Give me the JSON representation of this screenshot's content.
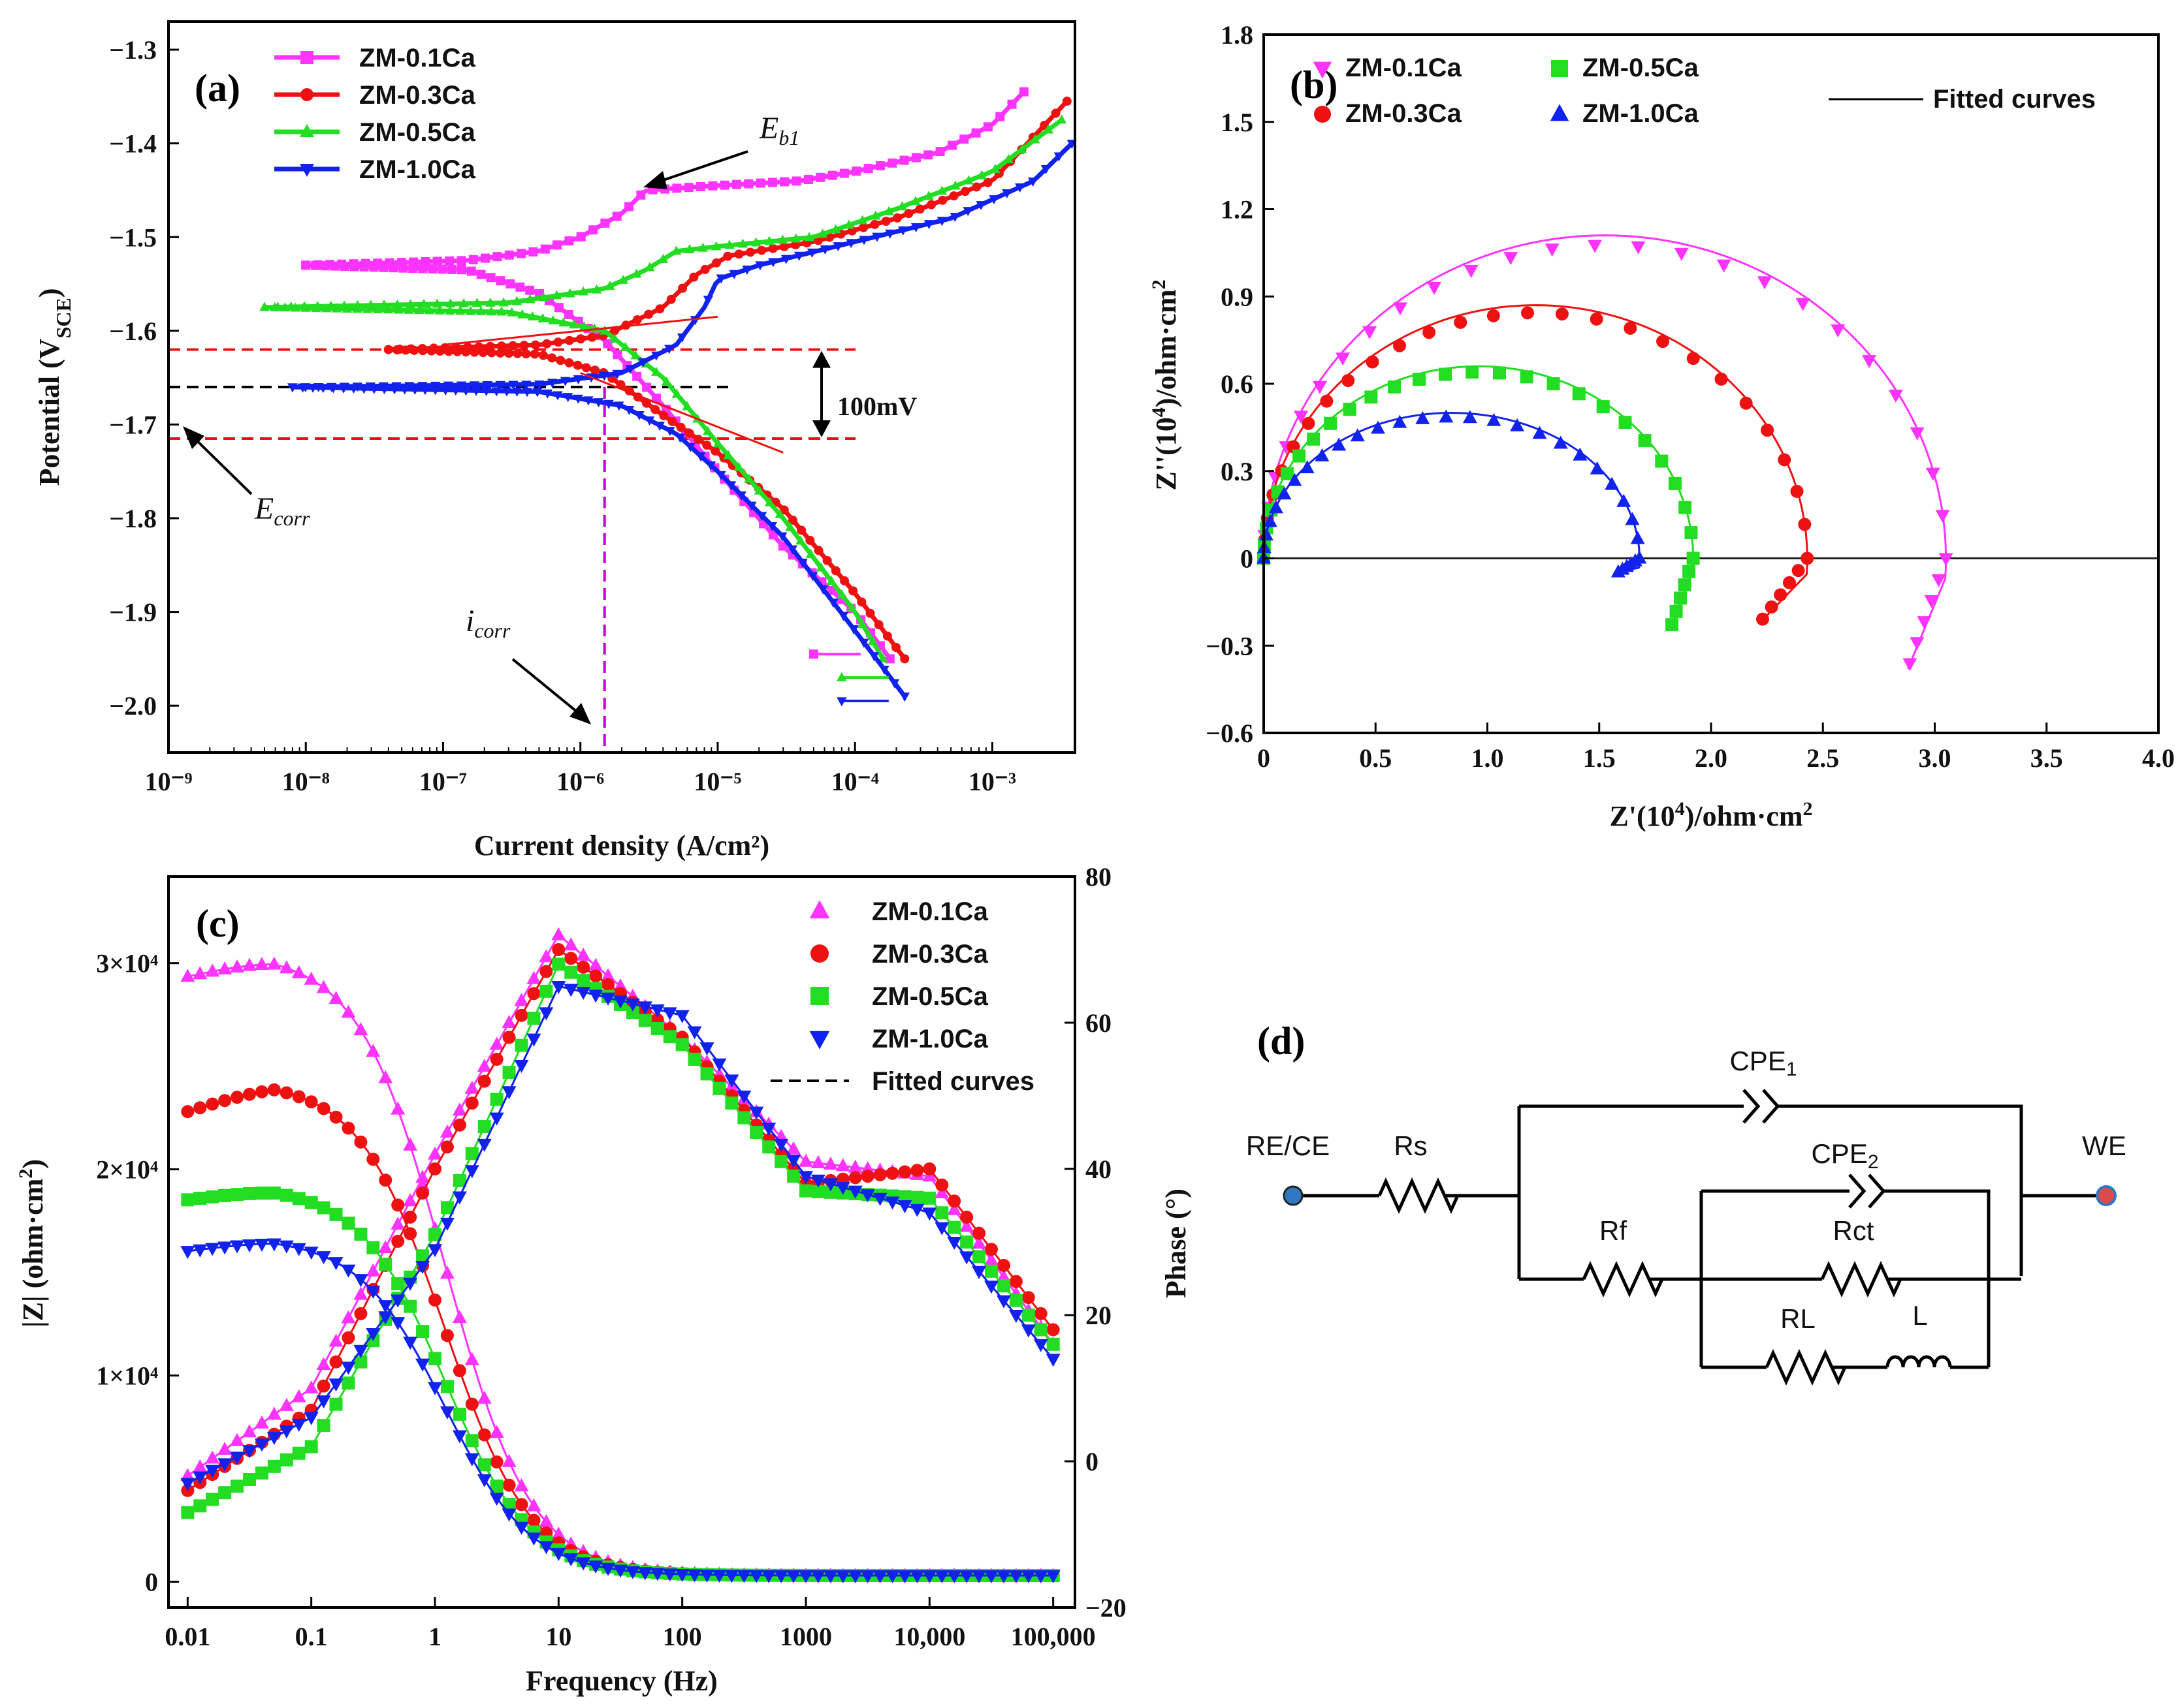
{
  "colors": {
    "ZM-0.1Ca": "#ff33ff",
    "ZM-0.3Ca": "#ee1111",
    "ZM-0.5Ca": "#22dd22",
    "ZM-1.0Ca": "#1122ee",
    "refline_red": "#ee1111",
    "refline_black": "#000000",
    "refline_magenta": "#cc00cc"
  },
  "chart_data": [
    {
      "panel": "(a)",
      "type": "line",
      "x_scale": "log",
      "xlabel": "Current density (A/cm²)",
      "ylabel": "Potential (VSCE)",
      "xlim": [
        1e-09,
        0.004
      ],
      "ylim": [
        -2.05,
        -1.27
      ],
      "x_ticks": [
        "10⁻⁹",
        "10⁻⁸",
        "10⁻⁷",
        "10⁻⁶",
        "10⁻⁵",
        "10⁻⁴",
        "10⁻³"
      ],
      "y_ticks": [
        "−1.3",
        "−1.4",
        "−1.5",
        "−1.6",
        "−1.7",
        "−1.8",
        "−1.9",
        "−2.0"
      ],
      "legend": [
        "ZM-0.1Ca",
        "ZM-0.3Ca",
        "ZM-0.5Ca",
        "ZM-1.0Ca"
      ],
      "annotations": {
        "eb1_main": "E",
        "eb1_sub": "b1",
        "ecorr_main": "E",
        "ecorr_sub": "corr",
        "icorr_main": "i",
        "icorr_sub": "corr",
        "delta": "100mV"
      },
      "series": [
        {
          "name": "ZM-0.1Ca",
          "Ecorr": -1.53,
          "cathodic": [
            [
              1e-08,
              -1.53
            ],
            [
              1.5e-07,
              -1.535
            ],
            [
              5e-07,
              -1.56
            ],
            [
              1.5e-06,
              -1.61
            ],
            [
              4e-06,
              -1.68
            ],
            [
              1e-05,
              -1.75
            ],
            [
              3e-05,
              -1.83
            ],
            [
              0.0001,
              -1.9
            ],
            [
              0.00018,
              -1.95
            ]
          ],
          "anodic": [
            [
              1e-08,
              -1.53
            ],
            [
              1.5e-07,
              -1.525
            ],
            [
              5e-07,
              -1.515
            ],
            [
              1e-06,
              -1.5
            ],
            [
              2e-06,
              -1.475
            ],
            [
              3e-06,
              -1.45
            ],
            [
              1e-05,
              -1.445
            ],
            [
              4e-05,
              -1.44
            ],
            [
              0.0001,
              -1.43
            ],
            [
              0.0004,
              -1.41
            ],
            [
              0.001,
              -1.38
            ],
            [
              0.0017,
              -1.345
            ]
          ]
        },
        {
          "name": "ZM-0.3Ca",
          "Ecorr": -1.62,
          "cathodic": [
            [
              4e-08,
              -1.62
            ],
            [
              5e-07,
              -1.625
            ],
            [
              1.5e-06,
              -1.645
            ],
            [
              4e-06,
              -1.69
            ],
            [
              1e-05,
              -1.73
            ],
            [
              3e-05,
              -1.79
            ],
            [
              0.0001,
              -1.88
            ],
            [
              0.00023,
              -1.95
            ]
          ],
          "anodic": [
            [
              4e-08,
              -1.62
            ],
            [
              5e-07,
              -1.615
            ],
            [
              1.5e-06,
              -1.605
            ],
            [
              4e-06,
              -1.575
            ],
            [
              7e-06,
              -1.54
            ],
            [
              1.2e-05,
              -1.52
            ],
            [
              5e-05,
              -1.505
            ],
            [
              0.0002,
              -1.48
            ],
            [
              0.001,
              -1.44
            ],
            [
              0.0035,
              -1.355
            ]
          ]
        },
        {
          "name": "ZM-0.5Ca",
          "Ecorr": -1.575,
          "cathodic": [
            [
              5e-09,
              -1.575
            ],
            [
              3e-07,
              -1.58
            ],
            [
              1.5e-06,
              -1.6
            ],
            [
              4e-06,
              -1.65
            ],
            [
              1e-05,
              -1.72
            ],
            [
              3e-05,
              -1.8
            ],
            [
              0.0001,
              -1.9
            ],
            [
              0.00016,
              -1.95
            ]
          ],
          "anodic": [
            [
              5e-09,
              -1.575
            ],
            [
              3e-07,
              -1.57
            ],
            [
              1.5e-06,
              -1.555
            ],
            [
              3e-06,
              -1.535
            ],
            [
              5e-06,
              -1.515
            ],
            [
              1e-05,
              -1.51
            ],
            [
              5e-05,
              -1.5
            ],
            [
              0.0002,
              -1.47
            ],
            [
              0.001,
              -1.43
            ],
            [
              0.0032,
              -1.375
            ]
          ]
        },
        {
          "name": "ZM-1.0Ca",
          "Ecorr": -1.66,
          "cathodic": [
            [
              8e-09,
              -1.66
            ],
            [
              5e-07,
              -1.665
            ],
            [
              2e-06,
              -1.68
            ],
            [
              5e-06,
              -1.71
            ],
            [
              1e-05,
              -1.75
            ],
            [
              3e-05,
              -1.82
            ],
            [
              0.0001,
              -1.92
            ],
            [
              0.00023,
              -1.99
            ]
          ],
          "anodic": [
            [
              8e-09,
              -1.66
            ],
            [
              5e-07,
              -1.657
            ],
            [
              2e-06,
              -1.645
            ],
            [
              5e-06,
              -1.615
            ],
            [
              8e-06,
              -1.575
            ],
            [
              1e-05,
              -1.545
            ],
            [
              2e-05,
              -1.53
            ],
            [
              0.0001,
              -1.505
            ],
            [
              0.0005,
              -1.48
            ],
            [
              0.002,
              -1.44
            ],
            [
              0.0038,
              -1.4
            ]
          ]
        }
      ]
    },
    {
      "panel": "(b)",
      "type": "scatter",
      "xlabel": "Z'(10⁴)/ohm·cm²",
      "ylabel": "Z''(10⁴)/ohm·cm²",
      "xlim": [
        0,
        4.0
      ],
      "ylim": [
        -0.6,
        1.8
      ],
      "x_ticks": [
        "0",
        "0.5",
        "1.0",
        "1.5",
        "2.0",
        "2.5",
        "3.0",
        "3.5",
        "4.0"
      ],
      "y_ticks": [
        "−0.6",
        "−0.3",
        "0",
        "0.3",
        "0.6",
        "0.9",
        "1.2",
        "1.5",
        "1.8"
      ],
      "legend": [
        "ZM-0.1Ca",
        "ZM-0.3Ca",
        "ZM-0.5Ca",
        "ZM-1.0Ca",
        "Fitted curves"
      ],
      "series": [
        {
          "name": "ZM-0.1Ca",
          "R": 3.05,
          "peak": 1.11,
          "tail_end": [
            2.88,
            -0.38
          ]
        },
        {
          "name": "ZM-0.3Ca",
          "R": 2.43,
          "peak": 0.87,
          "tail_end": [
            2.22,
            -0.22
          ]
        },
        {
          "name": "ZM-0.5Ca",
          "R": 1.92,
          "peak": 0.66,
          "tail_end": [
            1.82,
            -0.24
          ]
        },
        {
          "name": "ZM-1.0Ca",
          "R": 1.68,
          "peak": 0.5,
          "tail_end": [
            1.58,
            -0.05
          ]
        }
      ]
    },
    {
      "panel": "(c)",
      "type": "scatter",
      "x_scale": "log",
      "xlabel": "Frequency (Hz)",
      "ylabel_left": "|Z| (ohm·cm²)",
      "ylabel_right": "Phase (°)",
      "xlim": [
        0.007,
        150000
      ],
      "ylim_left": [
        -1250,
        34200
      ],
      "ylim_right": [
        -20,
        80
      ],
      "x_ticks": [
        "0.01",
        "0.1",
        "1",
        "10",
        "100",
        "1000",
        "10,000",
        "100,000"
      ],
      "y_ticks_left": [
        "0",
        "1×10⁴",
        "2×10⁴",
        "3×10⁴"
      ],
      "y_ticks_right": [
        "−20",
        "0",
        "20",
        "40",
        "60",
        "80"
      ],
      "legend": [
        "ZM-0.1Ca",
        "ZM-0.3Ca",
        "ZM-0.5Ca",
        "ZM-1.0Ca",
        "Fitted curves"
      ],
      "series": [
        {
          "name": "ZM-0.1Ca",
          "Z_low": 29300,
          "Z_peak": 30500,
          "phase": [
            [
              0.01,
              -2
            ],
            [
              0.1,
              10
            ],
            [
              1,
              42
            ],
            [
              10,
              72
            ],
            [
              100,
              58
            ],
            [
              1000,
              41
            ],
            [
              10000,
              39
            ],
            [
              100000,
              16
            ]
          ]
        },
        {
          "name": "ZM-0.3Ca",
          "Z_low": 22700,
          "Z_peak": 24300,
          "phase": [
            [
              0.01,
              -4
            ],
            [
              0.1,
              7
            ],
            [
              1,
              40
            ],
            [
              10,
              70
            ],
            [
              100,
              58
            ],
            [
              1000,
              38
            ],
            [
              10000,
              40
            ],
            [
              100000,
              18
            ]
          ]
        },
        {
          "name": "ZM-0.5Ca",
          "Z_low": 18500,
          "Z_peak": 19200,
          "phase": [
            [
              0.01,
              -7
            ],
            [
              0.1,
              2
            ],
            [
              1,
              31
            ],
            [
              10,
              68
            ],
            [
              100,
              57
            ],
            [
              1000,
              37
            ],
            [
              10000,
              36
            ],
            [
              100000,
              16
            ]
          ]
        },
        {
          "name": "ZM-1.0Ca",
          "Z_low": 16000,
          "Z_peak": 16700,
          "phase": [
            [
              0.01,
              -3
            ],
            [
              0.1,
              6
            ],
            [
              1,
              29
            ],
            [
              10,
              65
            ],
            [
              100,
              61
            ],
            [
              1000,
              39
            ],
            [
              10000,
              34
            ],
            [
              100000,
              14
            ]
          ]
        }
      ]
    }
  ],
  "circuit": {
    "panel": "(d)",
    "labels": {
      "re_ce": "RE/CE",
      "rs": "Rs",
      "cpe1": "CPE",
      "cpe1_sub": "1",
      "cpe2": "CPE",
      "cpe2_sub": "2",
      "rf": "Rf",
      "rct": "Rct",
      "rl": "RL",
      "l": "L",
      "we": "WE"
    },
    "terminal_color": "#2f78c4",
    "terminal_color_we": "#d94a4a"
  }
}
